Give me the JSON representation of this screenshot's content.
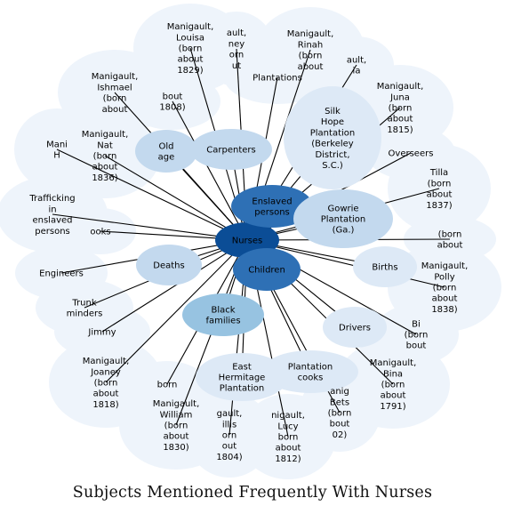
{
  "title": "Subjects Mentioned Frequently With Nurses",
  "hub": {
    "id": "nurses",
    "label": "Nurses"
  },
  "colors": {
    "hub": "#0b4d96",
    "dark": "#2e70b5",
    "mid": "#6aa8d4",
    "medium_light": "#97c3e1",
    "light": "#c3d9ee",
    "lighter": "#dde9f6",
    "faint": "#eef4fb",
    "edge": "#000000",
    "text": "#000000"
  },
  "nodes": [
    {
      "id": "nurses",
      "lines": [
        "Nurses"
      ],
      "tone": "hub"
    },
    {
      "id": "enslaved-persons",
      "lines": [
        "Enslaved",
        "persons"
      ],
      "tone": "dark"
    },
    {
      "id": "children",
      "lines": [
        "Children"
      ],
      "tone": "dark"
    },
    {
      "id": "gowrie-plantation",
      "lines": [
        "Gowrie",
        "Plantation",
        "(Ga.)"
      ],
      "tone": "light"
    },
    {
      "id": "black-families",
      "lines": [
        "Black",
        "families"
      ],
      "tone": "medium_light"
    },
    {
      "id": "silk-hope-plantation",
      "lines": [
        "Silk",
        "Hope",
        "Plantation",
        "(Berkeley",
        "District,",
        "S.C.)"
      ],
      "tone": "lighter"
    },
    {
      "id": "carpenters",
      "lines": [
        "Carpenters"
      ],
      "tone": "light"
    },
    {
      "id": "deaths",
      "lines": [
        "Deaths"
      ],
      "tone": "light"
    },
    {
      "id": "old-age",
      "lines": [
        "Old",
        "age"
      ],
      "tone": "light"
    },
    {
      "id": "births",
      "lines": [
        "Births"
      ],
      "tone": "lighter"
    },
    {
      "id": "drivers",
      "lines": [
        "Drivers"
      ],
      "tone": "lighter"
    },
    {
      "id": "plantation-cooks",
      "lines": [
        "Plantation",
        "cooks"
      ],
      "tone": "lighter"
    },
    {
      "id": "east-hermitage-plantation",
      "lines": [
        "East",
        "Hermitage",
        "Plantation"
      ],
      "tone": "lighter"
    },
    {
      "id": "plantations",
      "lines": [
        "Plantations"
      ],
      "tone": "faint"
    },
    {
      "id": "overseers",
      "lines": [
        "Overseers"
      ],
      "tone": "faint"
    },
    {
      "id": "engineers",
      "lines": [
        "Engineers"
      ],
      "tone": "faint"
    },
    {
      "id": "trunk-minders",
      "lines": [
        "Trunk",
        "minders"
      ],
      "tone": "faint"
    },
    {
      "id": "trafficking-in-enslaved-persons",
      "lines": [
        "Trafficking",
        "in",
        "enslaved",
        "persons"
      ],
      "tone": "faint"
    },
    {
      "id": "cooks",
      "lines": [
        "ooks"
      ],
      "tone": "faint"
    },
    {
      "id": "manigault-louisa",
      "lines": [
        "Manigault,",
        "Louisa",
        "(born",
        "about",
        "1829)"
      ],
      "tone": "faint"
    },
    {
      "id": "manigault-rinah",
      "lines": [
        "Manigault,",
        "Rinah",
        "(born",
        "about"
      ],
      "tone": "faint"
    },
    {
      "id": "manigault-juna",
      "lines": [
        "Manigault,",
        "Juna",
        "(born",
        "about",
        "1815)"
      ],
      "tone": "faint"
    },
    {
      "id": "manigault-ishmael",
      "lines": [
        "Manigault,",
        "Ishmael",
        "(born",
        "about"
      ],
      "tone": "faint"
    },
    {
      "id": "manigault-nat",
      "lines": [
        "Manigault,",
        "Nat",
        "(born",
        "about",
        "1836)"
      ],
      "tone": "faint"
    },
    {
      "id": "manigault-tilla",
      "lines": [
        "Tilla",
        "(born",
        "about",
        "1837)"
      ],
      "tone": "faint"
    },
    {
      "id": "manigault-polly",
      "lines": [
        "Manigault,",
        "Polly",
        "(born",
        "about",
        "1838)"
      ],
      "tone": "faint"
    },
    {
      "id": "manigault-jimmy",
      "lines": [
        "Jimmy"
      ],
      "tone": "faint"
    },
    {
      "id": "manigault-joaney",
      "lines": [
        "Manigault,",
        "Joaney",
        "(born",
        "about",
        "1818)"
      ],
      "tone": "faint"
    },
    {
      "id": "manigault-william",
      "lines": [
        "Manigault,",
        "William",
        "(born",
        "about",
        "1830)"
      ],
      "tone": "faint"
    },
    {
      "id": "manigault-willis",
      "lines": [
        "gault,",
        "illis",
        "orn",
        "out",
        "1804)"
      ],
      "tone": "faint"
    },
    {
      "id": "manigault-lucy",
      "lines": [
        "nigault,",
        "Lucy",
        "born",
        "about",
        "1812)"
      ],
      "tone": "faint"
    },
    {
      "id": "manigault-bets",
      "lines": [
        "anig",
        "Bets",
        "(born",
        "bout",
        "02)"
      ],
      "tone": "faint"
    },
    {
      "id": "manigault-bina",
      "lines": [
        "Manigault,",
        "Bina",
        "(born",
        "about",
        "1791)"
      ],
      "tone": "faint"
    },
    {
      "id": "manigault-bi",
      "lines": [
        "Bi",
        "(born",
        "bout"
      ],
      "tone": "faint"
    },
    {
      "id": "manigault-born-about-1808",
      "lines": [
        "bout",
        "1808)"
      ],
      "tone": "faint"
    },
    {
      "id": "manigault-sidney",
      "lines": [
        "ault,",
        "ney",
        "orn",
        "ut"
      ],
      "tone": "faint"
    },
    {
      "id": "manigault-jia",
      "lines": [
        "ault,",
        "ia"
      ],
      "tone": "faint"
    },
    {
      "id": "manigault-left",
      "lines": [
        "Mani",
        "H"
      ],
      "tone": "faint"
    },
    {
      "id": "manigault-born-about-right",
      "lines": [
        "(born",
        "about"
      ],
      "tone": "faint"
    },
    {
      "id": "manigault-born-lower",
      "lines": [
        "born"
      ],
      "tone": "faint"
    }
  ]
}
